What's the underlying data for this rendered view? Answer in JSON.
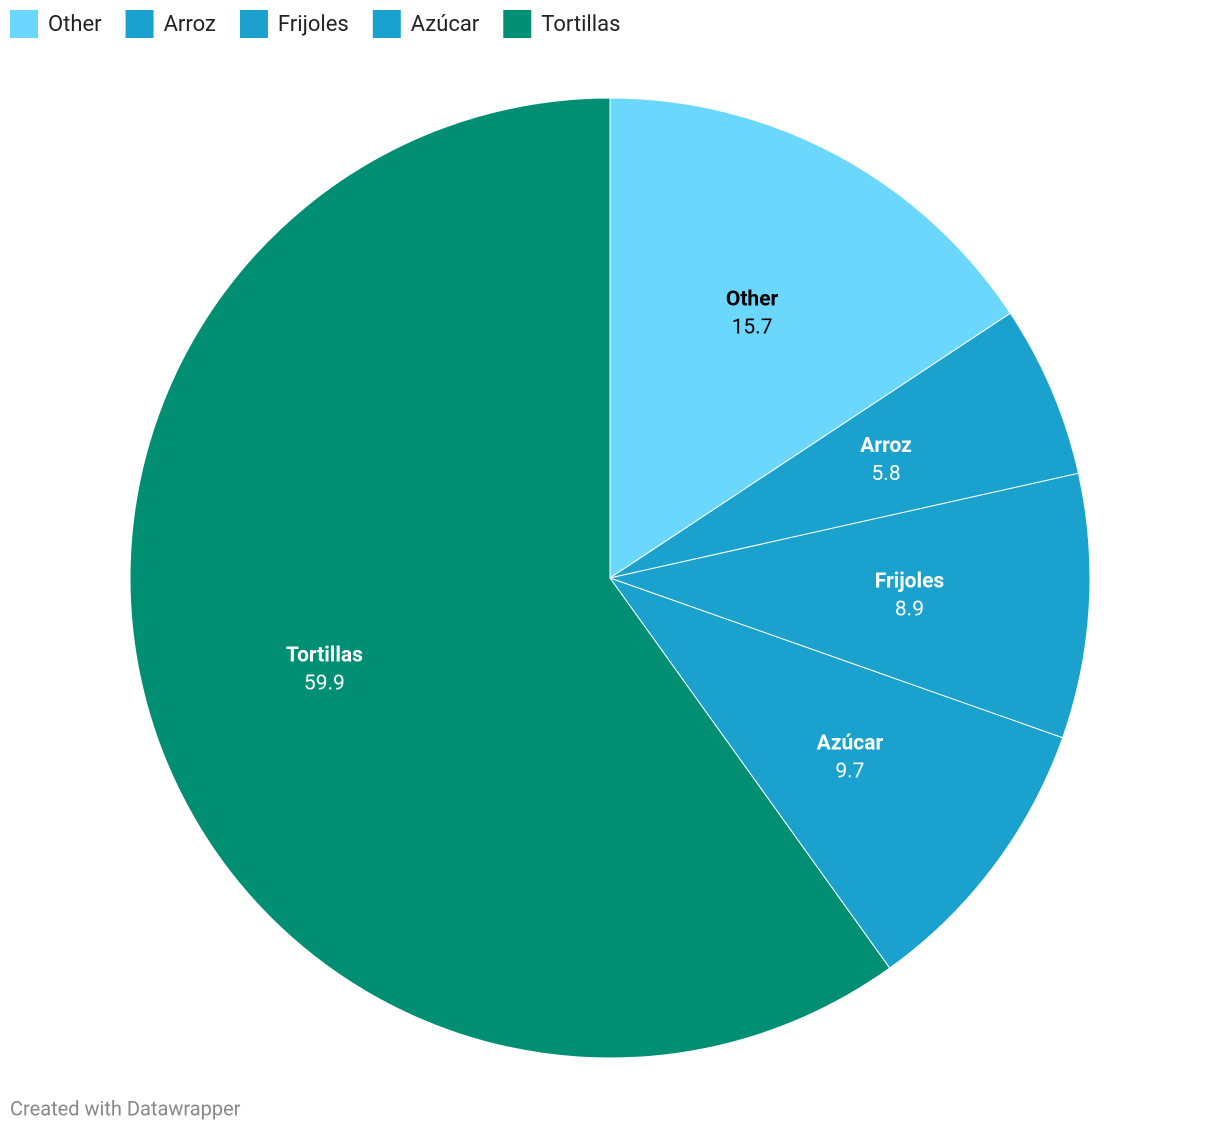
{
  "chart_data": {
    "type": "pie",
    "categories": [
      "Other",
      "Arroz",
      "Frijoles",
      "Azúcar",
      "Tortillas"
    ],
    "values": [
      15.7,
      5.8,
      8.9,
      9.7,
      59.9
    ],
    "colors": [
      "#6bd7fd",
      "#1aa1ce",
      "#1aa1ce",
      "#1aa1ce",
      "#008f73"
    ],
    "legend": "top-left",
    "credit": "Created with Datawrapper"
  }
}
